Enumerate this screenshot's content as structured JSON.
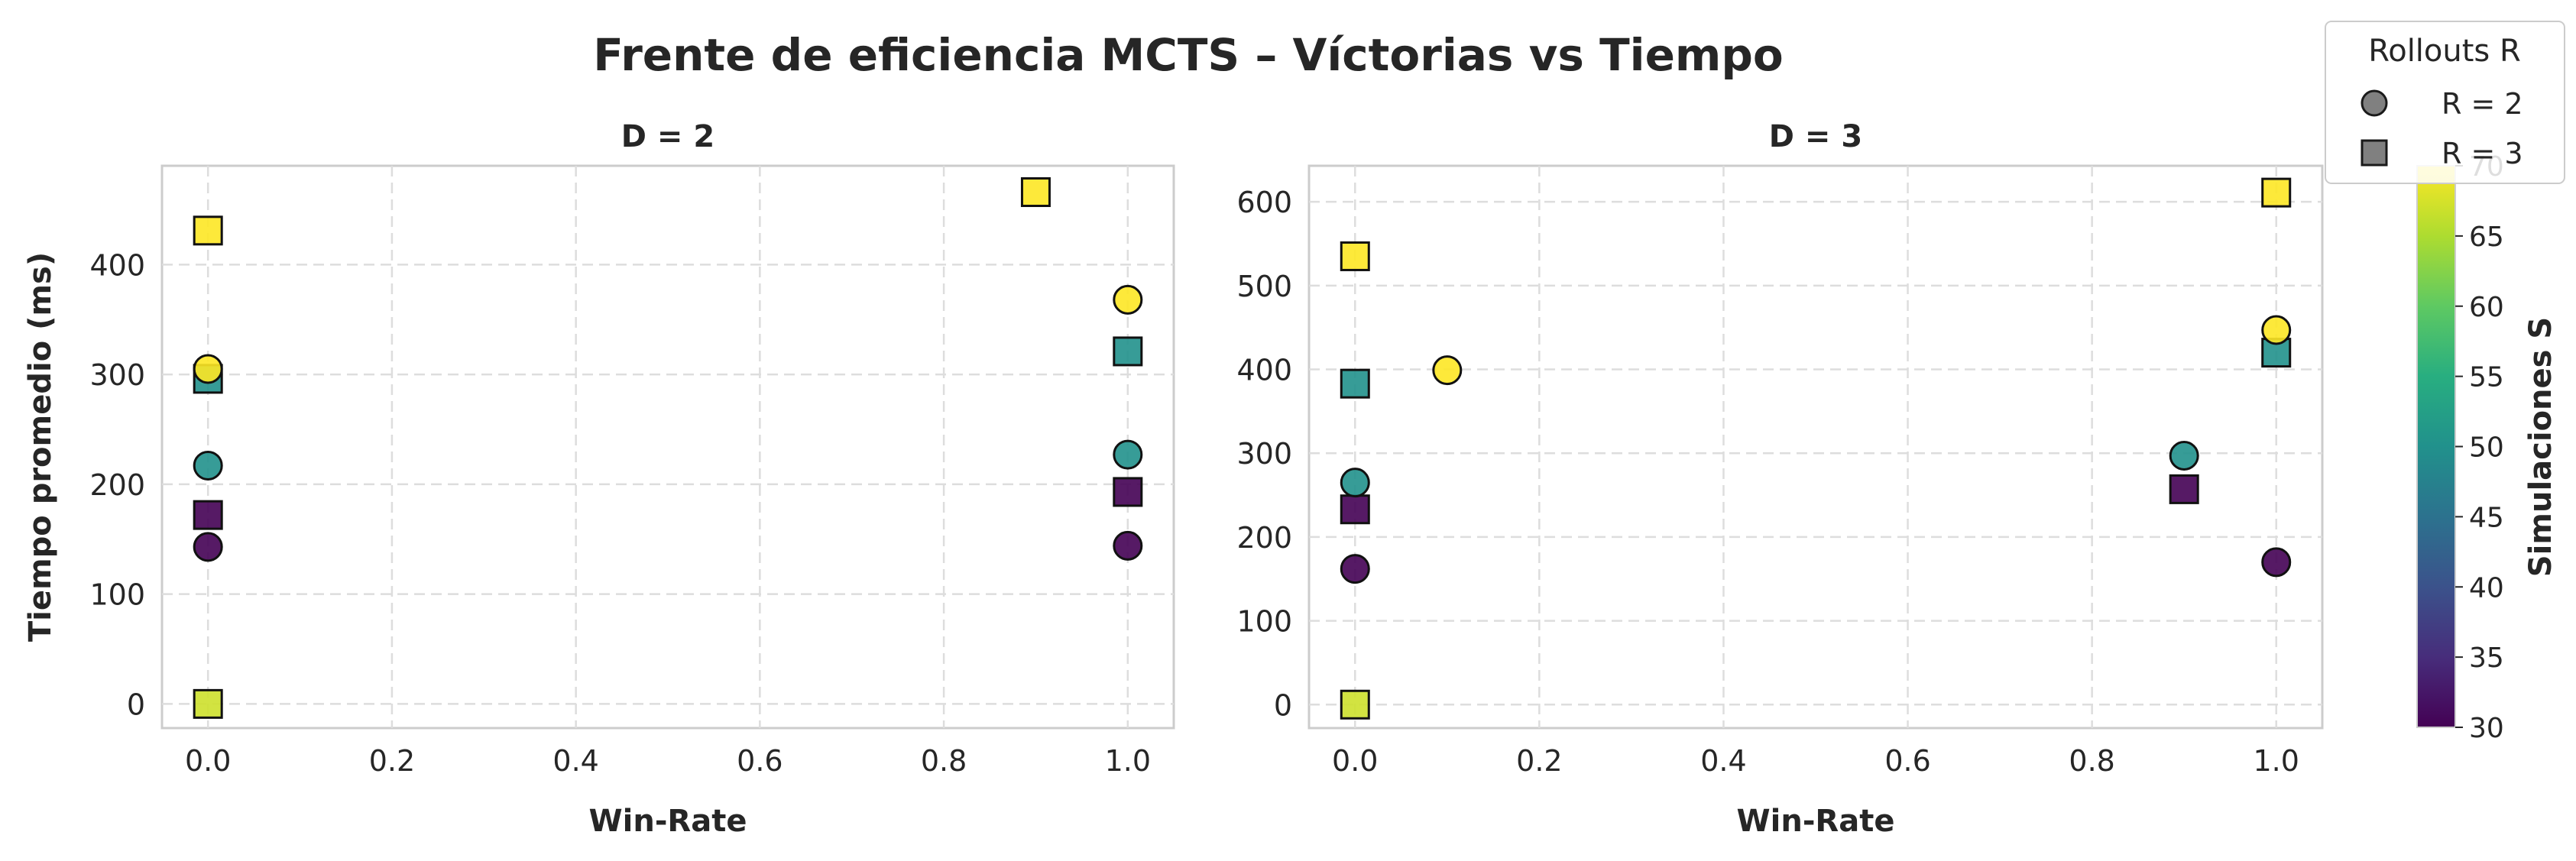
{
  "chart_data": {
    "title": "Frente de eficiencia MCTS – Víctorias vs Tiempo",
    "legend": {
      "title": "Rollouts R",
      "entries": [
        {
          "label": "R = 2",
          "marker": "circle"
        },
        {
          "label": "R = 3",
          "marker": "square"
        }
      ],
      "placement": "top-right"
    },
    "colorbar": {
      "label": "Simulaciones S",
      "min": 30,
      "max": 70,
      "ticks": [
        "30",
        "35",
        "40",
        "45",
        "50",
        "55",
        "60",
        "65",
        "70"
      ],
      "colormap": "viridis"
    },
    "panels": [
      {
        "type": "scatter",
        "title": "D = 2",
        "xlabel": "Win-Rate",
        "ylabel": "Tiempo promedio (ms)",
        "xlim": [
          -0.05,
          1.05
        ],
        "ylim": [
          -22,
          490
        ],
        "xticks": [
          "0.0",
          "0.2",
          "0.4",
          "0.6",
          "0.8",
          "1.0"
        ],
        "yticks": [
          "0",
          "100",
          "200",
          "300",
          "400"
        ],
        "grid": true,
        "points": [
          {
            "x": 0.0,
            "y": 0,
            "R": 3,
            "S": 67
          },
          {
            "x": 0.0,
            "y": 143,
            "R": 2,
            "S": 30
          },
          {
            "x": 0.0,
            "y": 172,
            "R": 3,
            "S": 30
          },
          {
            "x": 0.0,
            "y": 217,
            "R": 2,
            "S": 50
          },
          {
            "x": 0.0,
            "y": 296,
            "R": 3,
            "S": 50
          },
          {
            "x": 0.0,
            "y": 305,
            "R": 2,
            "S": 70
          },
          {
            "x": 0.0,
            "y": 431,
            "R": 3,
            "S": 70
          },
          {
            "x": 0.9,
            "y": 466,
            "R": 3,
            "S": 70
          },
          {
            "x": 1.0,
            "y": 144,
            "R": 2,
            "S": 30
          },
          {
            "x": 1.0,
            "y": 193,
            "R": 3,
            "S": 30
          },
          {
            "x": 1.0,
            "y": 227,
            "R": 2,
            "S": 50
          },
          {
            "x": 1.0,
            "y": 321,
            "R": 3,
            "S": 50
          },
          {
            "x": 1.0,
            "y": 368,
            "R": 2,
            "S": 70
          }
        ]
      },
      {
        "type": "scatter",
        "title": "D = 3",
        "xlabel": "Win-Rate",
        "ylabel": "",
        "xlim": [
          -0.05,
          1.05
        ],
        "ylim": [
          -28,
          643
        ],
        "xticks": [
          "0.0",
          "0.2",
          "0.4",
          "0.6",
          "0.8",
          "1.0"
        ],
        "yticks": [
          "0",
          "100",
          "200",
          "300",
          "400",
          "500",
          "600"
        ],
        "grid": true,
        "points": [
          {
            "x": 0.0,
            "y": 0,
            "R": 3,
            "S": 67
          },
          {
            "x": 0.0,
            "y": 162,
            "R": 2,
            "S": 30
          },
          {
            "x": 0.0,
            "y": 233,
            "R": 3,
            "S": 30
          },
          {
            "x": 0.0,
            "y": 265,
            "R": 2,
            "S": 50
          },
          {
            "x": 0.0,
            "y": 383,
            "R": 3,
            "S": 50
          },
          {
            "x": 0.0,
            "y": 535,
            "R": 3,
            "S": 70
          },
          {
            "x": 0.1,
            "y": 399,
            "R": 2,
            "S": 70
          },
          {
            "x": 0.9,
            "y": 257,
            "R": 3,
            "S": 30
          },
          {
            "x": 0.9,
            "y": 297,
            "R": 2,
            "S": 50
          },
          {
            "x": 1.0,
            "y": 170,
            "R": 2,
            "S": 30
          },
          {
            "x": 1.0,
            "y": 420,
            "R": 3,
            "S": 50
          },
          {
            "x": 1.0,
            "y": 447,
            "R": 2,
            "S": 70
          },
          {
            "x": 1.0,
            "y": 611,
            "R": 3,
            "S": 70
          }
        ]
      }
    ]
  }
}
